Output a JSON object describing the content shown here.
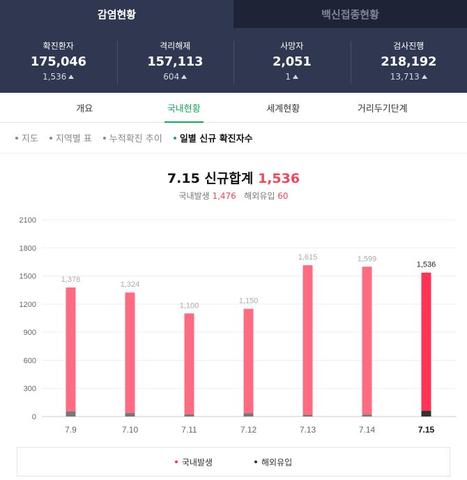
{
  "top_tabs": [
    {
      "label": "감염현황",
      "active": true
    },
    {
      "label": "백신접종현황",
      "active": false
    }
  ],
  "stats": [
    {
      "label": "확진환자",
      "value": "175,046",
      "change": "1,536"
    },
    {
      "label": "격리해제",
      "value": "157,113",
      "change": "604"
    },
    {
      "label": "사망자",
      "value": "2,051",
      "change": "1"
    },
    {
      "label": "검사진행",
      "value": "218,192",
      "change": "13,713"
    }
  ],
  "sub_tabs": [
    {
      "label": "개요",
      "active": false
    },
    {
      "label": "국내현황",
      "active": true
    },
    {
      "label": "세계현황",
      "active": false
    },
    {
      "label": "거리두기단계",
      "active": false
    }
  ],
  "filters": [
    {
      "label": "지도",
      "active": false
    },
    {
      "label": "지역별 표",
      "active": false
    },
    {
      "label": "누적확진 추이",
      "active": false
    },
    {
      "label": "일별 신규 확진자수",
      "active": true
    }
  ],
  "summary": {
    "date": "7.15",
    "title_label": "신규합계",
    "total": "1,536",
    "domestic_label": "국내발생",
    "domestic_value": "1,476",
    "overseas_label": "해외유입",
    "overseas_value": "60"
  },
  "colors": {
    "domestic": "#ff6b81",
    "domestic_highlight": "#ff3355",
    "overseas": "#777777",
    "overseas_highlight": "#333333",
    "accent_green": "#1aa35f",
    "header_bg": "#2f3850"
  },
  "chart_data": {
    "type": "bar",
    "stacked": true,
    "categories": [
      "7.9",
      "7.10",
      "7.11",
      "7.12",
      "7.13",
      "7.14",
      "7.15"
    ],
    "series": [
      {
        "name": "국내발생",
        "values": [
          1323,
          1287,
          1078,
          1114,
          1597,
          1578,
          1476
        ]
      },
      {
        "name": "해외유입",
        "values": [
          55,
          37,
          22,
          36,
          18,
          21,
          60
        ]
      }
    ],
    "totals": [
      "1,378",
      "1,324",
      "1,100",
      "1,150",
      "1,615",
      "1,599",
      "1,536"
    ],
    "yticks": [
      "2100",
      "1800",
      "1500",
      "1200",
      "900",
      "600",
      "300",
      "0"
    ],
    "ylim": [
      0,
      2100
    ],
    "highlight_index": 6,
    "grid": true,
    "legend_position": "bottom"
  },
  "legend": [
    {
      "label": "국내발생",
      "color": "#ff3355"
    },
    {
      "label": "해외유입",
      "color": "#333333"
    }
  ]
}
